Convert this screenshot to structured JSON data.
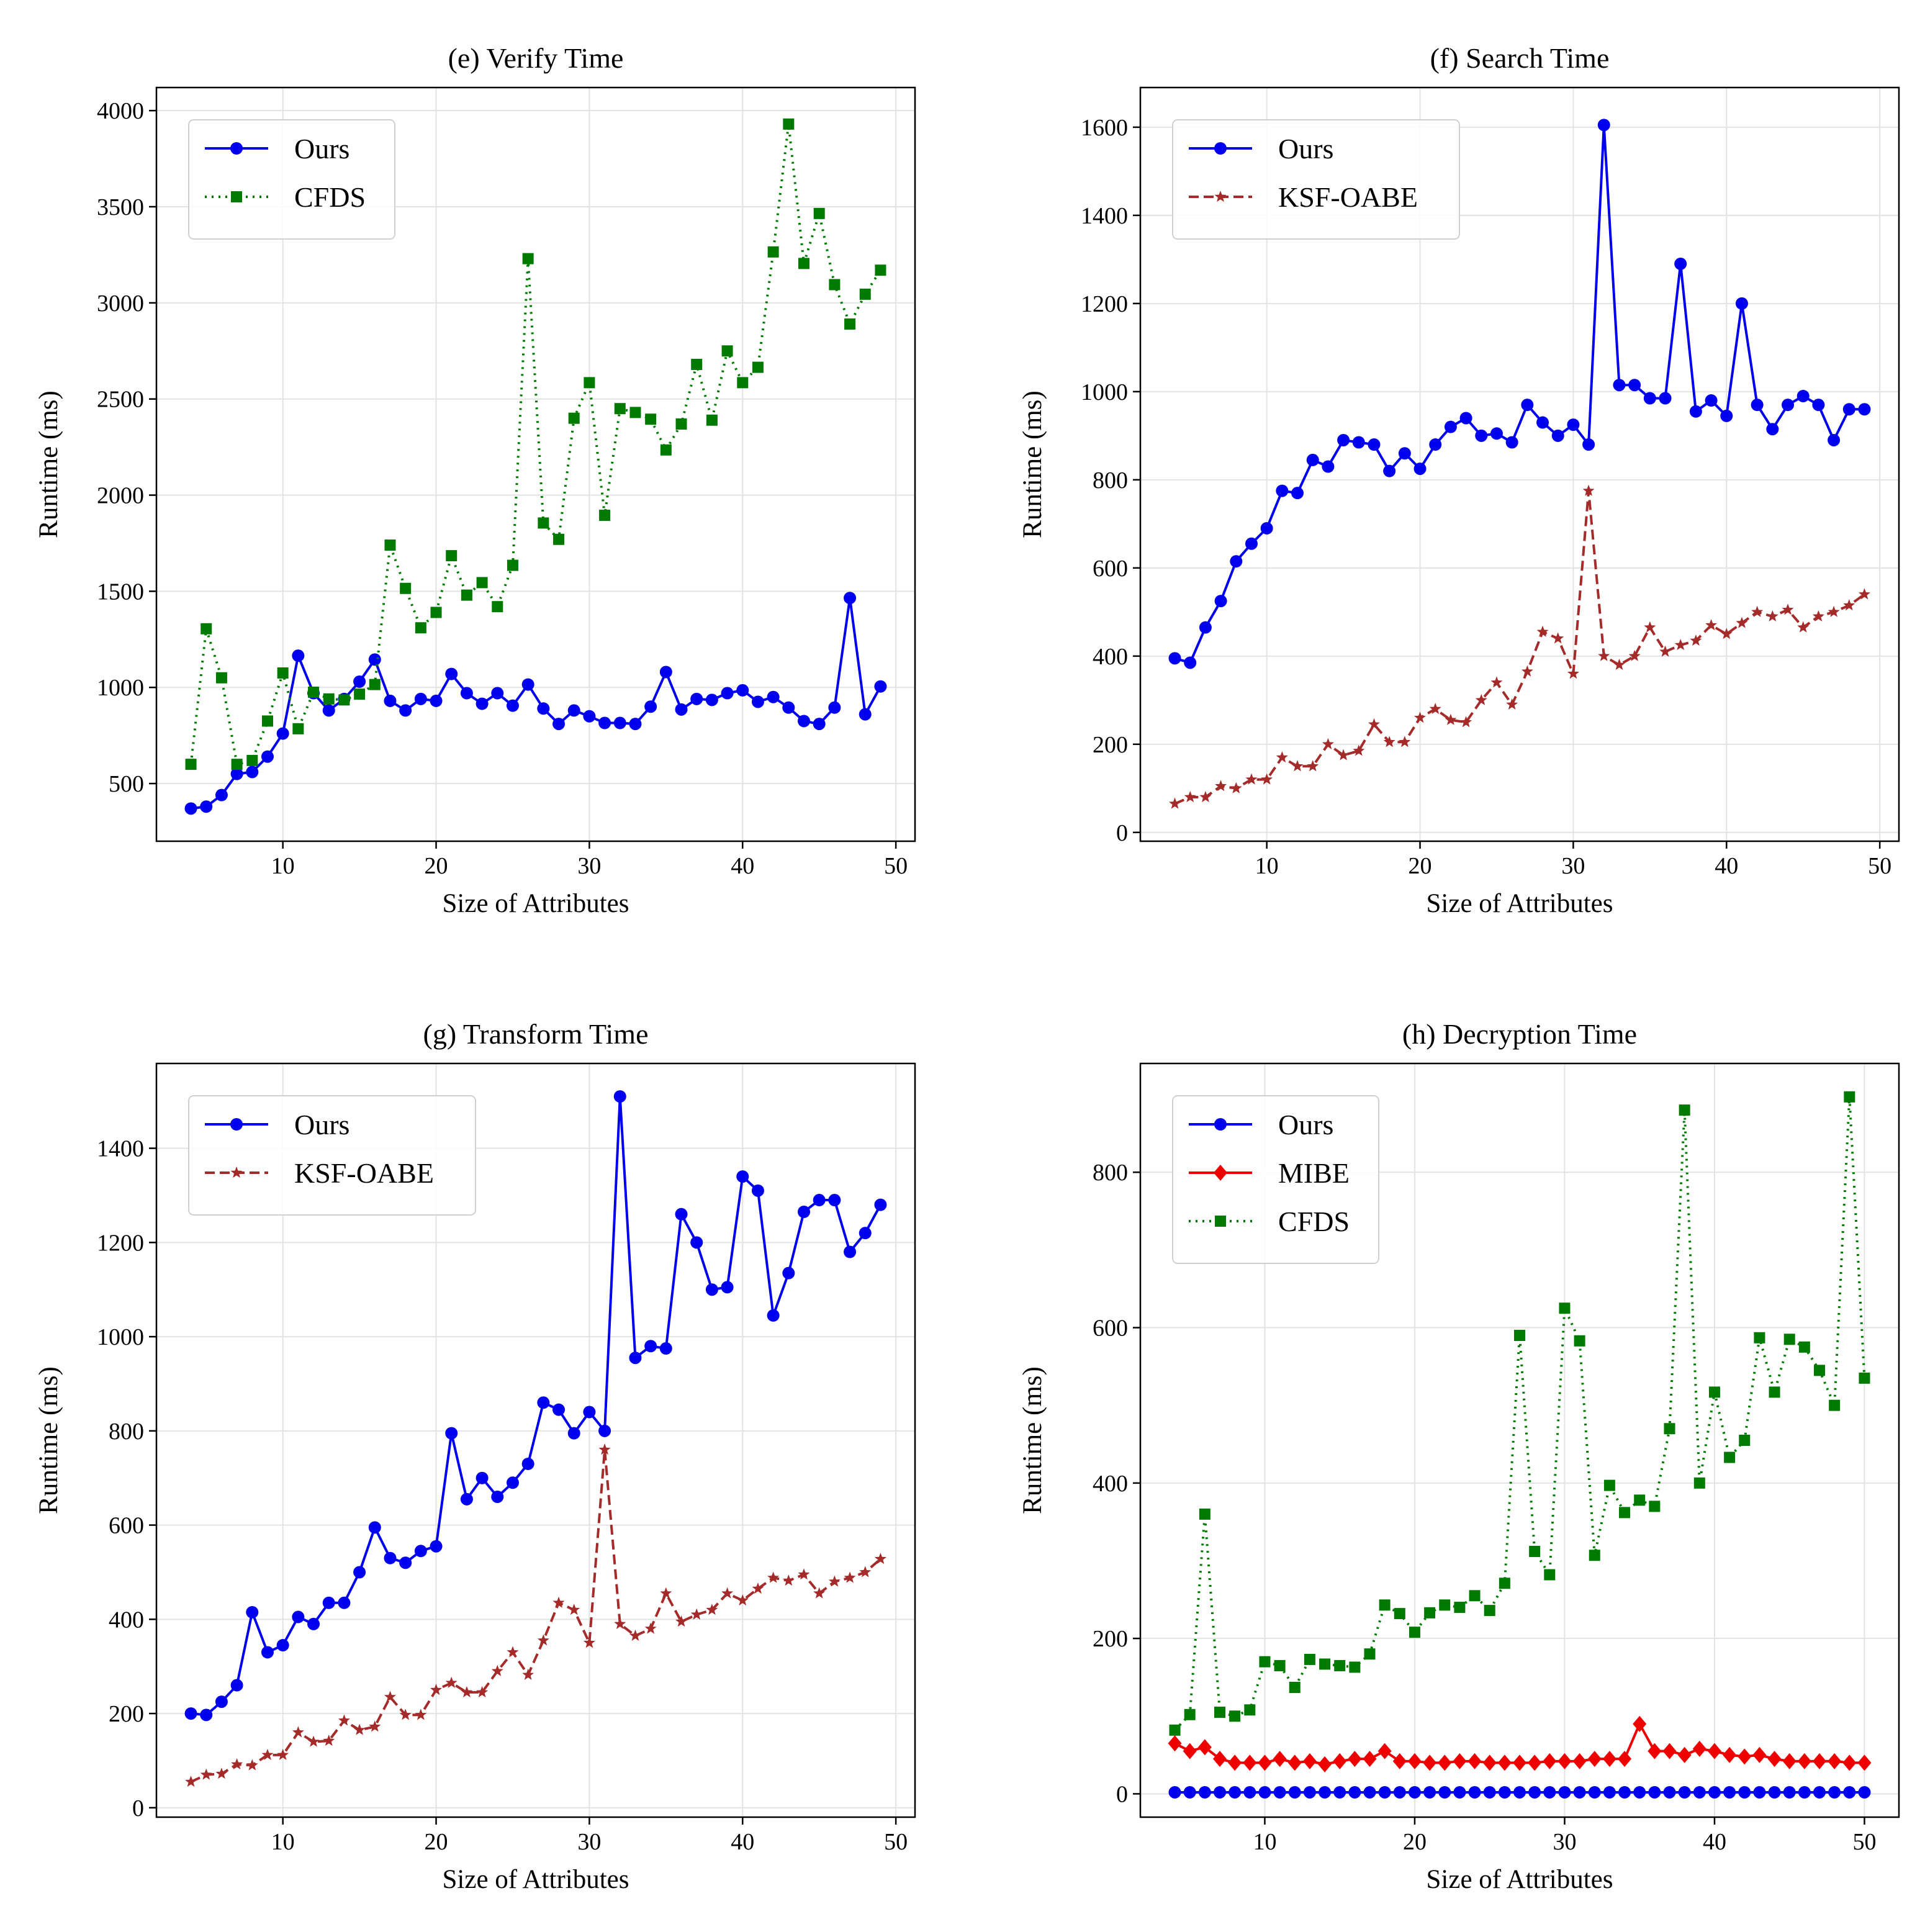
{
  "chart_data": [
    {
      "type": "line",
      "title": "(e) Verify Time",
      "xlabel": "Size of Attributes",
      "ylabel": "Runtime (ms)",
      "xlim": [
        1.75,
        51.25
      ],
      "ylim": [
        200,
        4120
      ],
      "xticks": [
        10,
        20,
        30,
        40,
        50
      ],
      "yticks": [
        500,
        1000,
        1500,
        2000,
        2500,
        3000,
        3500,
        4000
      ],
      "grid": true,
      "legend_position": "top-left",
      "series": [
        {
          "name": "Ours",
          "color": "#0000ee",
          "line_style": "solid",
          "marker": "circle",
          "x": [
            4,
            5,
            6,
            7,
            8,
            9,
            10,
            11,
            12,
            13,
            14,
            15,
            16,
            17,
            18,
            19,
            20,
            21,
            22,
            23,
            24,
            25,
            26,
            27,
            28,
            29,
            30,
            31,
            32,
            33,
            34,
            35,
            36,
            37,
            38,
            39,
            40,
            41,
            42,
            43,
            44,
            45,
            46,
            47,
            48,
            49
          ],
          "values": [
            370,
            380,
            440,
            550,
            560,
            640,
            760,
            1165,
            970,
            880,
            940,
            1030,
            1145,
            930,
            880,
            940,
            930,
            1070,
            970,
            915,
            970,
            905,
            1015,
            890,
            810,
            880,
            850,
            815,
            815,
            810,
            900,
            1080,
            885,
            940,
            935,
            970,
            985,
            925,
            950,
            895,
            825,
            810,
            895,
            1465,
            860,
            1005
          ]
        },
        {
          "name": "CFDS",
          "color": "#007a00",
          "line_style": "dotted",
          "marker": "square",
          "x": [
            4,
            5,
            6,
            7,
            8,
            9,
            10,
            11,
            12,
            13,
            14,
            15,
            16,
            17,
            18,
            19,
            20,
            21,
            22,
            23,
            24,
            25,
            26,
            27,
            28,
            29,
            30,
            31,
            32,
            33,
            34,
            35,
            36,
            37,
            38,
            39,
            40,
            41,
            42,
            43,
            44,
            45,
            46,
            47,
            48,
            49
          ],
          "values": [
            600,
            1305,
            1050,
            600,
            620,
            825,
            1075,
            785,
            975,
            940,
            935,
            965,
            1015,
            1740,
            1515,
            1310,
            1390,
            1685,
            1480,
            1545,
            1420,
            1635,
            3230,
            1855,
            1770,
            2400,
            2585,
            1895,
            2450,
            2430,
            2395,
            2235,
            2370,
            2680,
            2390,
            2750,
            2585,
            2665,
            3265,
            3930,
            3205,
            3465,
            3095,
            2890,
            3045,
            3170
          ]
        }
      ]
    },
    {
      "type": "line",
      "title": "(f) Search Time",
      "xlabel": "Size of Attributes",
      "ylabel": "Runtime (ms)",
      "xlim": [
        1.75,
        51.25
      ],
      "ylim": [
        -20,
        1690
      ],
      "xticks": [
        10,
        20,
        30,
        40,
        50
      ],
      "yticks": [
        0,
        200,
        400,
        600,
        800,
        1000,
        1200,
        1400,
        1600
      ],
      "grid": true,
      "legend_position": "top-left",
      "series": [
        {
          "name": "Ours",
          "color": "#0000ee",
          "line_style": "solid",
          "marker": "circle",
          "x": [
            4,
            5,
            6,
            7,
            8,
            9,
            10,
            11,
            12,
            13,
            14,
            15,
            16,
            17,
            18,
            19,
            20,
            21,
            22,
            23,
            24,
            25,
            26,
            27,
            28,
            29,
            30,
            31,
            32,
            33,
            34,
            35,
            36,
            37,
            38,
            39,
            40,
            41,
            42,
            43,
            44,
            45,
            46,
            47,
            48,
            49
          ],
          "values": [
            395,
            385,
            465,
            525,
            615,
            655,
            690,
            775,
            770,
            845,
            830,
            890,
            885,
            880,
            820,
            860,
            825,
            880,
            920,
            940,
            900,
            905,
            885,
            970,
            930,
            900,
            925,
            880,
            1605,
            1015,
            1015,
            985,
            985,
            1290,
            955,
            980,
            945,
            1200,
            970,
            915,
            970,
            990,
            970,
            890,
            960,
            960
          ]
        },
        {
          "name": "KSF-OABE",
          "color": "#a52a2a",
          "line_style": "dashed",
          "marker": "star",
          "x": [
            4,
            5,
            6,
            7,
            8,
            9,
            10,
            11,
            12,
            13,
            14,
            15,
            16,
            17,
            18,
            19,
            20,
            21,
            22,
            23,
            24,
            25,
            26,
            27,
            28,
            29,
            30,
            31,
            32,
            33,
            34,
            35,
            36,
            37,
            38,
            39,
            40,
            41,
            42,
            43,
            44,
            45,
            46,
            47,
            48,
            49
          ],
          "values": [
            65,
            80,
            80,
            105,
            100,
            120,
            120,
            170,
            150,
            150,
            200,
            175,
            185,
            245,
            205,
            205,
            260,
            280,
            255,
            250,
            300,
            340,
            290,
            365,
            455,
            440,
            360,
            775,
            400,
            380,
            400,
            465,
            410,
            425,
            435,
            470,
            450,
            475,
            500,
            490,
            505,
            465,
            490,
            500,
            515,
            540
          ]
        }
      ]
    },
    {
      "type": "line",
      "title": "(g) Transform Time",
      "xlabel": "Size of Attributes",
      "ylabel": "Runtime (ms)",
      "xlim": [
        1.75,
        51.25
      ],
      "ylim": [
        -20,
        1580
      ],
      "xticks": [
        10,
        20,
        30,
        40,
        50
      ],
      "yticks": [
        0,
        200,
        400,
        600,
        800,
        1000,
        1200,
        1400
      ],
      "grid": true,
      "legend_position": "top-left",
      "series": [
        {
          "name": "Ours",
          "color": "#0000ee",
          "line_style": "solid",
          "marker": "circle",
          "x": [
            4,
            5,
            6,
            7,
            8,
            9,
            10,
            11,
            12,
            13,
            14,
            15,
            16,
            17,
            18,
            19,
            20,
            21,
            22,
            23,
            24,
            25,
            26,
            27,
            28,
            29,
            30,
            31,
            32,
            33,
            34,
            35,
            36,
            37,
            38,
            39,
            40,
            41,
            42,
            43,
            44,
            45,
            46,
            47,
            48,
            49
          ],
          "values": [
            200,
            197,
            225,
            260,
            415,
            330,
            345,
            405,
            390,
            435,
            435,
            500,
            595,
            530,
            520,
            545,
            555,
            795,
            655,
            700,
            660,
            690,
            730,
            860,
            845,
            795,
            840,
            800,
            1510,
            955,
            980,
            975,
            1260,
            1200,
            1100,
            1105,
            1340,
            1310,
            1045,
            1135,
            1265,
            1290,
            1290,
            1180,
            1220,
            1280
          ]
        },
        {
          "name": "KSF-OABE",
          "color": "#a52a2a",
          "line_style": "dashed",
          "marker": "star",
          "x": [
            4,
            5,
            6,
            7,
            8,
            9,
            10,
            11,
            12,
            13,
            14,
            15,
            16,
            17,
            18,
            19,
            20,
            21,
            22,
            23,
            24,
            25,
            26,
            27,
            28,
            29,
            30,
            31,
            32,
            33,
            34,
            35,
            36,
            37,
            38,
            39,
            40,
            41,
            42,
            43,
            44,
            45,
            46,
            47,
            48,
            49
          ],
          "values": [
            55,
            70,
            72,
            92,
            90,
            112,
            112,
            160,
            140,
            142,
            185,
            165,
            172,
            235,
            197,
            197,
            250,
            265,
            245,
            245,
            290,
            330,
            282,
            355,
            435,
            420,
            350,
            760,
            390,
            365,
            380,
            455,
            395,
            410,
            420,
            455,
            440,
            465,
            488,
            482,
            495,
            455,
            480,
            488,
            500,
            528
          ]
        }
      ]
    },
    {
      "type": "line",
      "title": "(h) Decryption Time",
      "xlabel": "Size of Attributes",
      "ylabel": "Runtime (ms)",
      "xlim": [
        1.7,
        52.3
      ],
      "ylim": [
        -30,
        940
      ],
      "xticks": [
        10,
        20,
        30,
        40,
        50
      ],
      "yticks": [
        0,
        200,
        400,
        600,
        800
      ],
      "grid": true,
      "legend_position": "top-left",
      "series": [
        {
          "name": "Ours",
          "color": "#0000ee",
          "line_style": "solid",
          "marker": "circle",
          "x": [
            4,
            5,
            6,
            7,
            8,
            9,
            10,
            11,
            12,
            13,
            14,
            15,
            16,
            17,
            18,
            19,
            20,
            21,
            22,
            23,
            24,
            25,
            26,
            27,
            28,
            29,
            30,
            31,
            32,
            33,
            34,
            35,
            36,
            37,
            38,
            39,
            40,
            41,
            42,
            43,
            44,
            45,
            46,
            47,
            48,
            49,
            50
          ],
          "values": [
            2,
            2,
            2,
            2,
            2,
            2,
            2,
            2,
            2,
            2,
            2,
            2,
            2,
            2,
            2,
            2,
            2,
            2,
            2,
            2,
            2,
            2,
            2,
            2,
            2,
            2,
            2,
            2,
            2,
            2,
            2,
            2,
            2,
            2,
            2,
            2,
            2,
            2,
            2,
            2,
            2,
            2,
            2,
            2,
            2,
            2,
            2
          ]
        },
        {
          "name": "MIBE",
          "color": "#ee0000",
          "line_style": "solid",
          "marker": "diamond",
          "x": [
            4,
            5,
            6,
            7,
            8,
            9,
            10,
            11,
            12,
            13,
            14,
            15,
            16,
            17,
            18,
            19,
            20,
            21,
            22,
            23,
            24,
            25,
            26,
            27,
            28,
            29,
            30,
            31,
            32,
            33,
            34,
            35,
            36,
            37,
            38,
            39,
            40,
            41,
            42,
            43,
            44,
            45,
            46,
            47,
            48,
            49,
            50
          ],
          "values": [
            65,
            55,
            60,
            45,
            40,
            40,
            40,
            45,
            40,
            42,
            38,
            42,
            45,
            45,
            55,
            42,
            42,
            40,
            40,
            42,
            42,
            40,
            40,
            40,
            40,
            42,
            42,
            42,
            45,
            45,
            45,
            90,
            55,
            55,
            50,
            58,
            55,
            50,
            48,
            50,
            45,
            42,
            42,
            42,
            42,
            40,
            40
          ]
        },
        {
          "name": "CFDS",
          "color": "#007a00",
          "line_style": "dotted",
          "marker": "square",
          "x": [
            4,
            5,
            6,
            7,
            8,
            9,
            10,
            11,
            12,
            13,
            14,
            15,
            16,
            17,
            18,
            19,
            20,
            21,
            22,
            23,
            24,
            25,
            26,
            27,
            28,
            29,
            30,
            31,
            32,
            33,
            34,
            35,
            36,
            37,
            38,
            39,
            40,
            41,
            42,
            43,
            44,
            45,
            46,
            47,
            48,
            49,
            50
          ],
          "values": [
            82,
            102,
            360,
            105,
            100,
            108,
            170,
            165,
            137,
            173,
            167,
            165,
            163,
            180,
            243,
            232,
            208,
            233,
            243,
            240,
            255,
            236,
            271,
            590,
            312,
            282,
            625,
            583,
            307,
            397,
            362,
            378,
            370,
            470,
            880,
            400,
            517,
            433,
            455,
            587,
            517,
            585,
            575,
            545,
            500,
            897,
            535
          ]
        }
      ]
    }
  ]
}
